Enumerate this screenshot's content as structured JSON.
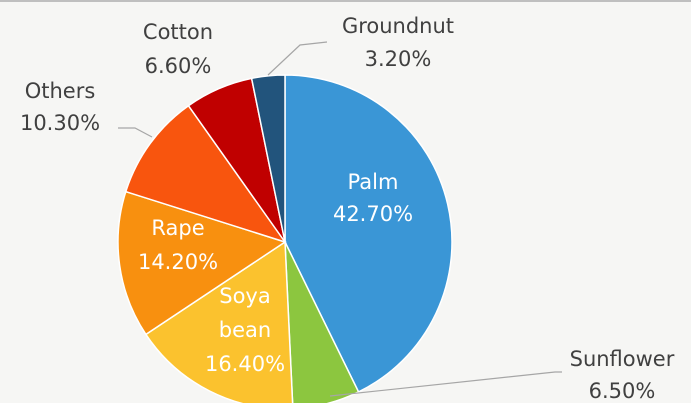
{
  "chart_data": {
    "type": "pie",
    "categories": [
      "Palm",
      "Sunflower",
      "Soya bean",
      "Rape",
      "Others",
      "Cotton",
      "Groundnut"
    ],
    "values": [
      42.7,
      6.5,
      16.4,
      14.2,
      10.3,
      6.6,
      3.2
    ],
    "value_labels": [
      "42.70%",
      "6.50%",
      "16.40%",
      "14.20%",
      "10.30%",
      "6.60%",
      "3.20%"
    ],
    "colors": [
      "#3a96d6",
      "#8cc63f",
      "#fbc22e",
      "#f8900f",
      "#f8550e",
      "#c00000",
      "#22547c"
    ]
  }
}
